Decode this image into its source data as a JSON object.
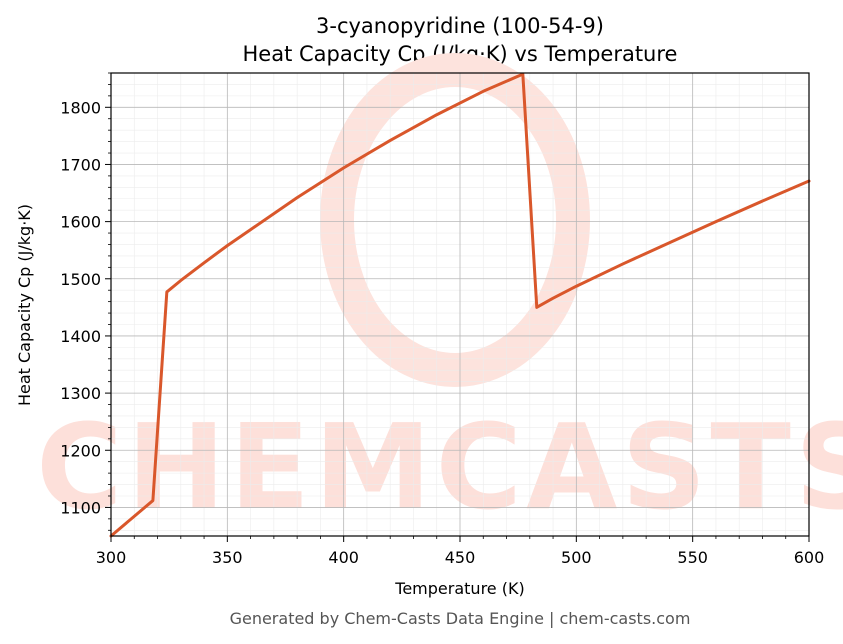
{
  "chart_data": {
    "type": "line",
    "title_line1": "3-cyanopyridine (100-54-9)",
    "title_line2": "Heat Capacity Cp (J/kg·K) vs Temperature",
    "xlabel": "Temperature (K)",
    "ylabel": "Heat Capacity Cp (J/kg·K)",
    "xlim": [
      300,
      600
    ],
    "ylim": [
      1050,
      1860
    ],
    "x_ticks": [
      300,
      350,
      400,
      450,
      500,
      550,
      600
    ],
    "y_ticks": [
      1100,
      1200,
      1300,
      1400,
      1500,
      1600,
      1700,
      1800
    ],
    "grid": true,
    "series": [
      {
        "color": "#d9572b",
        "x": [
          300,
          318,
          324,
          330,
          340,
          350,
          360,
          380,
          400,
          420,
          440,
          460,
          477,
          483,
          490,
          500,
          520,
          540,
          560,
          580,
          600
        ],
        "y": [
          1050,
          1112,
          1477,
          1497,
          1528,
          1558,
          1586,
          1642,
          1694,
          1742,
          1787,
          1828,
          1858,
          1450,
          1466,
          1487,
          1526,
          1563,
          1600,
          1636,
          1671
        ]
      }
    ],
    "watermark": "CHEMCASTS",
    "footer": "Generated by Chem-Casts Data Engine | chem-casts.com"
  }
}
